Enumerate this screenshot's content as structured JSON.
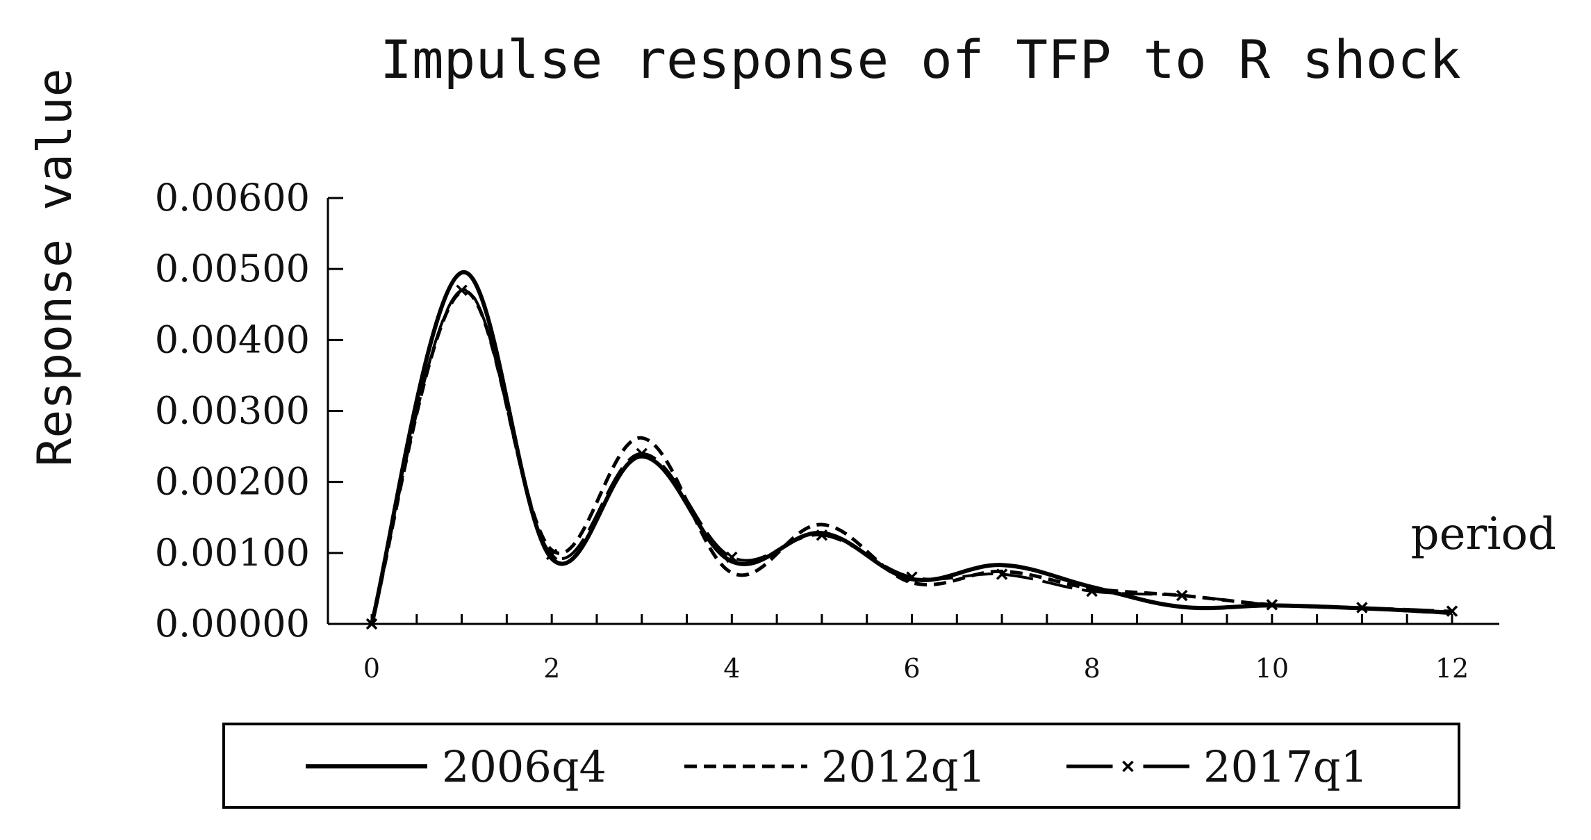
{
  "chart_data": {
    "type": "line",
    "title": "Impulse response of TFP to R shock",
    "ylabel": "Response value",
    "xlabel": "period",
    "ylim": [
      0,
      0.006
    ],
    "xlim": [
      0,
      12
    ],
    "y_ticks": [
      "0.00000",
      "0.00100",
      "0.00200",
      "0.00300",
      "0.00400",
      "0.00500",
      "0.00600"
    ],
    "y_tick_values": [
      0,
      0.001,
      0.002,
      0.003,
      0.004,
      0.005,
      0.006
    ],
    "x_ticks": [
      "0",
      "2",
      "4",
      "6",
      "8",
      "10",
      "12"
    ],
    "x_tick_values": [
      0,
      2,
      4,
      6,
      8,
      10,
      12
    ],
    "grid": false,
    "legend_position": "bottom",
    "x": [
      0,
      1,
      2,
      3,
      4,
      5,
      6,
      7,
      8,
      9,
      10,
      11,
      12
    ],
    "series": [
      {
        "name": "2006q4",
        "style": "solid",
        "color": "#000000",
        "values": [
          0.0,
          0.00495,
          0.00092,
          0.00236,
          0.00088,
          0.00128,
          0.00063,
          0.00083,
          0.00052,
          0.00024,
          0.00026,
          0.00022,
          0.00016
        ]
      },
      {
        "name": "2012q1",
        "style": "dashed",
        "color": "#000000",
        "values": [
          0.0,
          0.00468,
          0.00104,
          0.00262,
          0.00072,
          0.0014,
          0.00058,
          0.00074,
          0.0005,
          0.0004,
          0.00027,
          0.00022,
          0.00015
        ]
      },
      {
        "name": "2017q1",
        "style": "long-dash-x",
        "color": "#000000",
        "values": [
          0.0,
          0.0047,
          0.00098,
          0.0024,
          0.00094,
          0.00125,
          0.00066,
          0.0007,
          0.00046,
          0.0004,
          0.00027,
          0.00023,
          0.00018
        ]
      }
    ]
  }
}
